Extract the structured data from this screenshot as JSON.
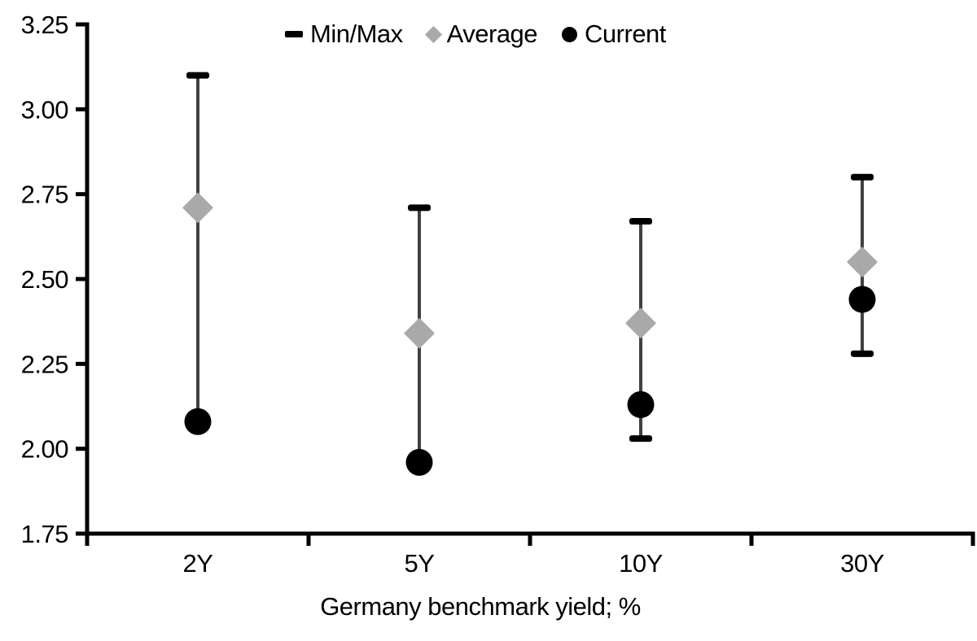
{
  "chart_data": {
    "type": "scatter",
    "subtype": "min-max-range-whisker",
    "title": "",
    "xlabel": "Germany benchmark yield; %",
    "ylabel": "",
    "ylim": [
      1.75,
      3.25
    ],
    "ytick_step": 0.25,
    "ytick_labels": [
      "3.25",
      "3.00",
      "2.75",
      "2.50",
      "2.25",
      "2.00",
      "1.75"
    ],
    "yticks": [
      3.25,
      3.0,
      2.75,
      2.5,
      2.25,
      2.0,
      1.75
    ],
    "categories": [
      "2Y",
      "5Y",
      "10Y",
      "30Y"
    ],
    "series": [
      {
        "name": "Min/Max",
        "marker": "dash",
        "color": "#000000",
        "max": [
          3.1,
          2.71,
          2.67,
          2.8
        ],
        "min": [
          2.08,
          1.96,
          2.03,
          2.28
        ]
      },
      {
        "name": "Average",
        "marker": "diamond",
        "color": "#a9a9a9",
        "values": [
          2.71,
          2.34,
          2.37,
          2.55
        ]
      },
      {
        "name": "Current",
        "marker": "circle",
        "color": "#000000",
        "values": [
          2.08,
          1.96,
          2.13,
          2.44
        ]
      }
    ],
    "colors": {
      "whisker_line": "#404040",
      "cap": "#000000",
      "axis": "#000000",
      "text": "#000000",
      "background": "#ffffff"
    },
    "grid": false,
    "legend_position": "top-center"
  }
}
